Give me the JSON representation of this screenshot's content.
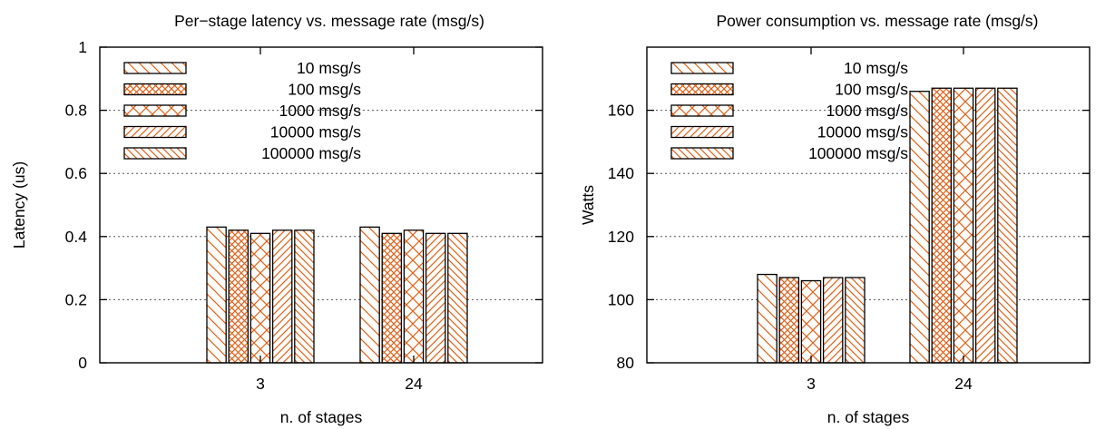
{
  "colors": {
    "bar_pattern": "#e0611a",
    "bar_fill": "#ffffff",
    "stroke": "#000000",
    "grid": "#555555"
  },
  "pattern_names": [
    "diagonal-down-icon",
    "crosshatch-icon",
    "x-hatch-icon",
    "diagonal-up-icon",
    "dense-diagonal-down-icon"
  ],
  "chart_data": [
    {
      "type": "bar",
      "title": "Per−stage latency vs. message rate (msg/s)",
      "xlabel": "n. of stages",
      "ylabel": "Latency (us)",
      "categories": [
        "3",
        "24"
      ],
      "ylim": [
        0,
        1
      ],
      "yticks": [
        "0",
        "0.2",
        "0.4",
        "0.6",
        "0.8",
        "1"
      ],
      "ytick_values": [
        0,
        0.2,
        0.4,
        0.6,
        0.8,
        1
      ],
      "grid": true,
      "legend_position": "top-left",
      "series": [
        {
          "name": "10 msg/s",
          "values": [
            0.43,
            0.43
          ]
        },
        {
          "name": "100 msg/s",
          "values": [
            0.42,
            0.41
          ]
        },
        {
          "name": "1000 msg/s",
          "values": [
            0.41,
            0.42
          ]
        },
        {
          "name": "10000 msg/s",
          "values": [
            0.42,
            0.41
          ]
        },
        {
          "name": "100000 msg/s",
          "values": [
            0.42,
            0.41
          ]
        }
      ]
    },
    {
      "type": "bar",
      "title": "Power consumption vs. message rate (msg/s)",
      "xlabel": "n. of stages",
      "ylabel": "Watts",
      "categories": [
        "3",
        "24"
      ],
      "ylim": [
        80,
        180
      ],
      "yticks": [
        "80",
        "100",
        "120",
        "140",
        "160"
      ],
      "ytick_values": [
        80,
        100,
        120,
        140,
        160
      ],
      "grid": true,
      "legend_position": "top-left",
      "series": [
        {
          "name": "10 msg/s",
          "values": [
            108,
            166
          ]
        },
        {
          "name": "100 msg/s",
          "values": [
            107,
            167
          ]
        },
        {
          "name": "1000 msg/s",
          "values": [
            106,
            167
          ]
        },
        {
          "name": "10000 msg/s",
          "values": [
            107,
            167
          ]
        },
        {
          "name": "100000 msg/s",
          "values": [
            107,
            167
          ]
        }
      ]
    }
  ]
}
